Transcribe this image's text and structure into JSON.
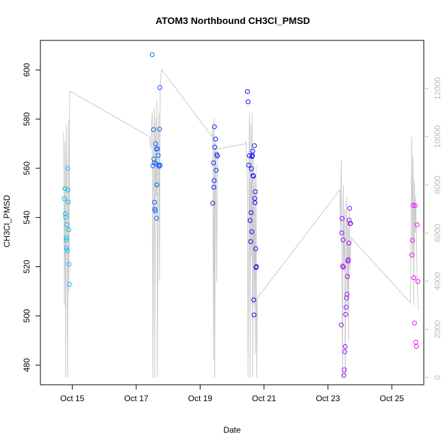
{
  "chart_data": {
    "type": "scatter",
    "title": "ATOM3 Northbound CH3Cl_PMSD",
    "xlabel": "Date",
    "ylabel": "CH3Cl_PMSD",
    "xlim": [
      "2016-10-14 00:00",
      "2016-10-26 00:00"
    ],
    "ylim": [
      472,
      612
    ],
    "y2lim": [
      -300,
      14000
    ],
    "x_ticks": [
      "2016-10-15",
      "2016-10-17",
      "2016-10-19",
      "2016-10-21",
      "2016-10-23",
      "2016-10-25"
    ],
    "x_tick_labels": [
      "Oct 15",
      "Oct 17",
      "Oct 19",
      "Oct 21",
      "Oct 23",
      "Oct 25"
    ],
    "y_ticks": [
      480,
      500,
      520,
      540,
      560,
      580,
      600
    ],
    "y2_ticks": [
      0,
      2000,
      4000,
      6000,
      8000,
      10000,
      12000
    ],
    "grid": false,
    "series": [
      {
        "marker": "open-circle",
        "color_scale": [
          "#00BFFF",
          "#0000FF",
          "#FF00FF"
        ],
        "x": [
          "2016-10-14 18:00",
          "2016-10-14 18:30",
          "2016-10-14 18:45",
          "2016-10-14 19:00",
          "2016-10-14 19:15",
          "2016-10-14 19:30",
          "2016-10-14 19:45",
          "2016-10-14 20:00",
          "2016-10-14 20:15",
          "2016-10-14 20:30",
          "2016-10-14 20:45",
          "2016-10-14 21:00",
          "2016-10-14 21:15",
          "2016-10-14 21:30",
          "2016-10-14 21:45",
          "2016-10-17 12:00",
          "2016-10-17 12:30",
          "2016-10-17 13:00",
          "2016-10-17 13:15",
          "2016-10-17 13:30",
          "2016-10-17 13:45",
          "2016-10-17 14:00",
          "2016-10-17 14:15",
          "2016-10-17 14:30",
          "2016-10-17 14:45",
          "2016-10-17 15:00",
          "2016-10-17 15:15",
          "2016-10-17 15:30",
          "2016-10-17 16:00",
          "2016-10-17 16:30",
          "2016-10-17 17:00",
          "2016-10-17 17:15",
          "2016-10-17 17:30",
          "2016-10-17 17:45",
          "2016-10-17 18:00",
          "2016-10-19 09:30",
          "2016-10-19 10:00",
          "2016-10-19 10:15",
          "2016-10-19 10:30",
          "2016-10-19 10:45",
          "2016-10-19 11:00",
          "2016-10-19 11:30",
          "2016-10-19 12:00",
          "2016-10-19 12:30",
          "2016-10-19 13:00",
          "2016-10-20 11:30",
          "2016-10-20 12:00",
          "2016-10-20 12:30",
          "2016-10-20 13:00",
          "2016-10-20 13:30",
          "2016-10-20 14:00",
          "2016-10-20 14:15",
          "2016-10-20 14:30",
          "2016-10-20 14:45",
          "2016-10-20 15:00",
          "2016-10-20 15:15",
          "2016-10-20 15:30",
          "2016-10-20 15:45",
          "2016-10-20 16:00",
          "2016-10-20 16:15",
          "2016-10-20 16:30",
          "2016-10-20 16:45",
          "2016-10-20 17:00",
          "2016-10-20 17:15",
          "2016-10-20 17:30",
          "2016-10-20 17:45",
          "2016-10-20 18:00",
          "2016-10-20 18:15",
          "2016-10-23 10:00",
          "2016-10-23 10:20",
          "2016-10-23 10:40",
          "2016-10-23 11:00",
          "2016-10-23 11:20",
          "2016-10-23 11:40",
          "2016-10-23 12:00",
          "2016-10-23 12:20",
          "2016-10-23 12:40",
          "2016-10-23 13:00",
          "2016-10-23 13:20",
          "2016-10-23 13:40",
          "2016-10-23 14:00",
          "2016-10-23 14:20",
          "2016-10-23 14:40",
          "2016-10-23 15:00",
          "2016-10-23 15:20",
          "2016-10-23 15:40",
          "2016-10-23 16:00",
          "2016-10-23 16:20",
          "2016-10-23 16:40",
          "2016-10-23 17:00",
          "2016-10-25 15:00",
          "2016-10-25 15:30",
          "2016-10-25 16:00",
          "2016-10-25 16:30",
          "2016-10-25 17:00",
          "2016-10-25 17:30",
          "2016-10-25 18:00",
          "2016-10-25 18:30",
          "2016-10-25 19:00",
          "2016-10-25 19:30"
        ],
        "y": [
          547.6,
          551.7,
          541.5,
          540.1,
          530.8,
          531.7,
          527.5,
          537.0,
          526.5,
          560.0,
          551.2,
          546.3,
          535.0,
          521.0,
          512.8,
          606.2,
          561.0,
          575.7,
          563.8,
          562.2,
          546.2,
          543.4,
          542.7,
          570.0,
          561.9,
          567.8,
          539.7,
          553.3,
          568.0,
          565.2,
          561.3,
          560.8,
          575.9,
          592.8,
          561.3,
          545.8,
          562.2,
          552.3,
          555.0,
          576.9,
          568.6,
          571.9,
          559.2,
          565.6,
          565.0,
          591.2,
          587.0,
          561.3,
          565.1,
          538.8,
          530.2,
          542.0,
          559.8,
          534.2,
          564.8,
          565.2,
          567.0,
          557.0,
          556.8,
          506.5,
          500.4,
          569.2,
          547.8,
          546.0,
          550.5,
          527.3,
          519.7,
          520.0,
          496.3,
          533.7,
          539.6,
          520.2,
          530.9,
          519.8,
          475.8,
          478.1,
          485.4,
          487.5,
          500.6,
          503.5,
          507.3,
          508.8,
          516.0,
          522.3,
          522.8,
          529.6,
          538.9,
          543.7,
          537.5,
          537.6,
          524.7,
          530.7,
          545.0,
          515.5,
          497.1,
          544.8,
          489.3,
          487.6,
          537.0,
          514.0
        ]
      },
      {
        "name": "",
        "axis": "right",
        "marker": "line",
        "color": "#c8c8c8",
        "x": [
          "2016-10-14 17:30",
          "2016-10-14 18:00",
          "2016-10-14 18:30",
          "2016-10-14 19:00",
          "2016-10-14 19:30",
          "2016-10-14 20:00",
          "2016-10-14 20:30",
          "2016-10-14 21:00",
          "2016-10-14 21:30",
          "2016-10-14 22:00",
          "2016-10-17 10:00",
          "2016-10-17 11:00",
          "2016-10-17 12:00",
          "2016-10-17 12:30",
          "2016-10-17 13:00",
          "2016-10-17 13:30",
          "2016-10-17 14:00",
          "2016-10-17 14:30",
          "2016-10-17 15:00",
          "2016-10-17 15:30",
          "2016-10-17 16:00",
          "2016-10-17 16:30",
          "2016-10-17 17:00",
          "2016-10-17 17:30",
          "2016-10-17 18:00",
          "2016-10-17 19:00",
          "2016-10-19 09:00",
          "2016-10-19 09:30",
          "2016-10-19 10:00",
          "2016-10-19 10:30",
          "2016-10-19 11:00",
          "2016-10-19 11:30",
          "2016-10-19 12:00",
          "2016-10-19 12:30",
          "2016-10-19 13:00",
          "2016-10-20 10:00",
          "2016-10-20 10:30",
          "2016-10-20 11:00",
          "2016-10-20 11:30",
          "2016-10-20 12:00",
          "2016-10-20 12:30",
          "2016-10-20 13:00",
          "2016-10-20 13:30",
          "2016-10-20 14:00",
          "2016-10-20 14:30",
          "2016-10-20 15:00",
          "2016-10-20 15:30",
          "2016-10-20 16:00",
          "2016-10-20 16:30",
          "2016-10-20 17:00",
          "2016-10-20 17:30",
          "2016-10-20 18:00",
          "2016-10-20 18:30",
          "2016-10-20 19:00",
          "2016-10-23 09:00",
          "2016-10-23 09:30",
          "2016-10-23 10:00",
          "2016-10-23 10:30",
          "2016-10-23 11:00",
          "2016-10-23 11:30",
          "2016-10-23 12:00",
          "2016-10-23 12:30",
          "2016-10-23 13:00",
          "2016-10-23 13:30",
          "2016-10-23 14:00",
          "2016-10-23 14:30",
          "2016-10-23 15:00",
          "2016-10-23 15:30",
          "2016-10-23 16:00",
          "2016-10-23 16:30",
          "2016-10-23 17:00",
          "2016-10-23 17:30",
          "2016-10-25 14:00",
          "2016-10-25 15:00",
          "2016-10-25 15:30",
          "2016-10-25 16:00",
          "2016-10-25 16:30",
          "2016-10-25 17:00",
          "2016-10-25 17:30",
          "2016-10-25 18:00",
          "2016-10-25 19:00",
          "2016-10-25 20:00"
        ],
        "y": [
          10200,
          3000,
          9800,
          0,
          10500,
          7000,
          0,
          10700,
          3500,
          11900,
          10000,
          9500,
          11000,
          0,
          9000,
          11200,
          0,
          10800,
          7500,
          11500,
          0,
          9800,
          11000,
          4000,
          12100,
          12800,
          10000,
          10400,
          700,
          10800,
          0,
          9800,
          8500,
          4000,
          9500,
          9700,
          9800,
          9000,
          8000,
          0,
          6000,
          11000,
          0,
          10500,
          5000,
          11000,
          0,
          9500,
          3000,
          8500,
          1000,
          8800,
          0,
          3300,
          7800,
          6000,
          9000,
          5000,
          0,
          8000,
          4500,
          7000,
          0,
          6000,
          7500,
          3000,
          6500,
          1500,
          7000,
          4500,
          5300,
          5800,
          3100,
          10000,
          5000,
          9200,
          3000,
          8200,
          6000,
          7500,
          4000,
          2800
        ]
      }
    ]
  }
}
